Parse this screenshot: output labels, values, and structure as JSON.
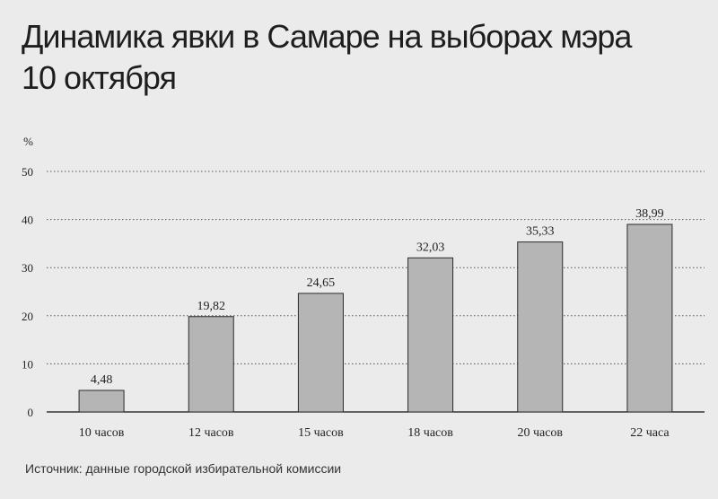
{
  "title_line1": "Динамика явки в Самаре на выборах мэра",
  "title_line2": "10 октября",
  "source": "Источник: данные городской избирательной комиссии",
  "colors": {
    "background": "#ebebeb",
    "bar": "#b5b5b5",
    "bar_stroke": "#2a2a2a",
    "grid": "#555555"
  },
  "chart_data": {
    "type": "bar",
    "title": "Динамика явки в Самаре на выборах мэра 10 октября",
    "ylabel": "%",
    "xlabel": "",
    "ylim": [
      0,
      50
    ],
    "yticks": [
      0,
      10,
      20,
      30,
      40,
      50
    ],
    "grid": true,
    "categories": [
      "10 часов",
      "12 часов",
      "15 часов",
      "18 часов",
      "20 часов",
      "22 часа"
    ],
    "values": [
      4.48,
      19.82,
      24.65,
      32.03,
      35.33,
      38.99
    ],
    "value_labels": [
      "4,48",
      "19,82",
      "24,65",
      "32,03",
      "35,33",
      "38,99"
    ]
  }
}
